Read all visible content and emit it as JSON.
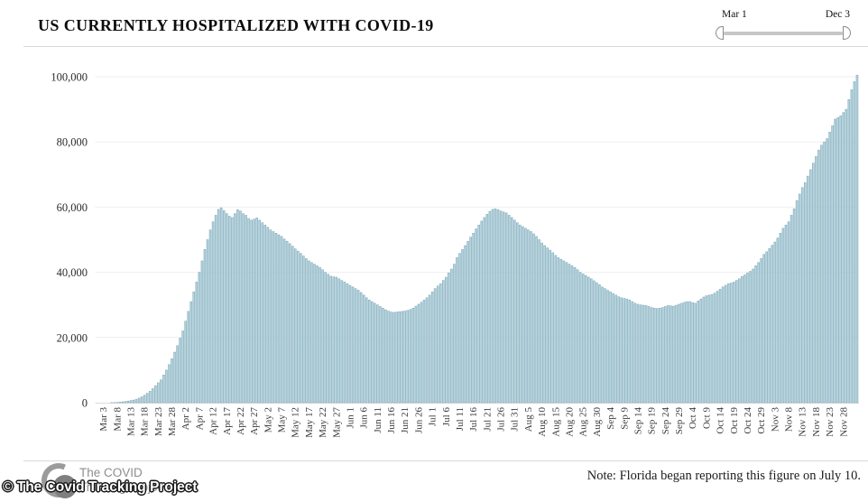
{
  "header": {
    "range_slider": {
      "start_label": "Mar 1",
      "end_label": "Dec 3"
    }
  },
  "chart_data": {
    "type": "bar",
    "title": "US CURRENTLY HOSPITALIZED WITH COVID-19",
    "xlabel": "",
    "ylabel": "",
    "start_date": "Mar 1",
    "end_date": "Dec 3",
    "frequency": "daily",
    "ylim": [
      0,
      100000
    ],
    "grid": "horizontal",
    "bar_color": "#b5d4de",
    "bar_edge_color": "#7ea8b8",
    "grid_color": "#efefef",
    "axis_line_color": "#dddddd",
    "y_ticks": [
      0,
      20000,
      40000,
      60000,
      80000,
      100000
    ],
    "y_tick_labels": [
      "0",
      "20,000",
      "40,000",
      "60,000",
      "80,000",
      "100,000"
    ],
    "x_tick_interval_days": 5,
    "x_tick_first_day_index": 2,
    "x_tick_labels": [
      "Mar 3",
      "Mar 8",
      "Mar 13",
      "Mar 18",
      "Mar 23",
      "Mar 28",
      "Apr 2",
      "Apr 7",
      "Apr 12",
      "Apr 17",
      "Apr 22",
      "Apr 27",
      "May 2",
      "May 7",
      "May 12",
      "May 17",
      "May 22",
      "May 27",
      "Jun 1",
      "Jun 6",
      "Jun 11",
      "Jun 16",
      "Jun 21",
      "Jun 26",
      "Jul 1",
      "Jul 6",
      "Jul 11",
      "Jul 16",
      "Jul 21",
      "Jul 26",
      "Jul 31",
      "Aug 5",
      "Aug 10",
      "Aug 15",
      "Aug 20",
      "Aug 25",
      "Aug 30",
      "Sep 4",
      "Sep 9",
      "Sep 14",
      "Sep 19",
      "Sep 24",
      "Sep 29",
      "Oct 4",
      "Oct 9",
      "Oct 14",
      "Oct 19",
      "Oct 24",
      "Oct 29",
      "Nov 3",
      "Nov 8",
      "Nov 13",
      "Nov 18",
      "Nov 23",
      "Nov 28"
    ],
    "values": [
      0,
      0,
      0,
      0,
      0,
      30,
      50,
      80,
      150,
      250,
      350,
      500,
      650,
      800,
      1000,
      1400,
      1800,
      2300,
      2900,
      3500,
      4300,
      5200,
      6100,
      7000,
      8500,
      10000,
      11700,
      13500,
      15500,
      17500,
      19800,
      22000,
      25000,
      28000,
      31000,
      34000,
      37000,
      40000,
      43500,
      47000,
      50000,
      53000,
      55500,
      57500,
      59300,
      59800,
      58900,
      58000,
      57200,
      56800,
      58000,
      59200,
      58800,
      58000,
      57500,
      56500,
      56000,
      56300,
      56700,
      56000,
      55200,
      54500,
      53800,
      53000,
      52500,
      52000,
      51500,
      51000,
      50200,
      49500,
      48800,
      48000,
      47200,
      46500,
      45800,
      45000,
      44200,
      43500,
      43000,
      42500,
      42000,
      41500,
      40800,
      40000,
      39400,
      38800,
      38600,
      38500,
      38000,
      37500,
      37000,
      36500,
      36000,
      35500,
      35000,
      34500,
      33800,
      33000,
      32200,
      31500,
      31000,
      30500,
      30000,
      29500,
      29000,
      28500,
      28100,
      27800,
      27700,
      27800,
      27900,
      28000,
      28100,
      28300,
      28600,
      29000,
      29600,
      30200,
      30800,
      31500,
      32200,
      33000,
      34000,
      35000,
      35800,
      36500,
      37500,
      38500,
      39800,
      41000,
      42500,
      44500,
      45800,
      47000,
      48200,
      49500,
      50800,
      52000,
      53300,
      54500,
      55700,
      56800,
      57800,
      58700,
      59300,
      59500,
      59200,
      58800,
      58500,
      58200,
      57500,
      56800,
      56000,
      55200,
      54500,
      54000,
      53500,
      53000,
      52500,
      51800,
      51000,
      50000,
      49000,
      48200,
      47500,
      46800,
      46000,
      45200,
      44500,
      44000,
      43500,
      43000,
      42500,
      42000,
      41500,
      40800,
      40000,
      39500,
      39000,
      38500,
      38000,
      37400,
      36800,
      36200,
      35500,
      35000,
      34500,
      34000,
      33500,
      33000,
      32500,
      32200,
      32000,
      31800,
      31500,
      31000,
      30500,
      30200,
      30000,
      29900,
      29800,
      29500,
      29200,
      29000,
      28900,
      29000,
      29200,
      29500,
      29800,
      29700,
      29600,
      29900,
      30200,
      30500,
      30800,
      31000,
      31000,
      30700,
      30500,
      31200,
      31800,
      32400,
      32800,
      33000,
      33200,
      33600,
      34200,
      34800,
      35500,
      36000,
      36500,
      36700,
      37000,
      37500,
      38000,
      38700,
      39200,
      39800,
      40300,
      41000,
      42000,
      43000,
      44200,
      45500,
      46300,
      47300,
      48300,
      49300,
      50500,
      52000,
      53500,
      54500,
      55500,
      57500,
      59500,
      62000,
      64000,
      66000,
      67500,
      69500,
      71500,
      73500,
      75500,
      77500,
      79000,
      80000,
      81000,
      83000,
      85000,
      87000,
      87500,
      88000,
      89000,
      90000,
      93000,
      96000,
      98500,
      100500
    ]
  },
  "footer": {
    "logo_line1": "The COVID",
    "logo_line2": "Tracking Project",
    "watermark": "© The Covid Tracking Project",
    "note": "Note: Florida began reporting this figure on July 10."
  }
}
